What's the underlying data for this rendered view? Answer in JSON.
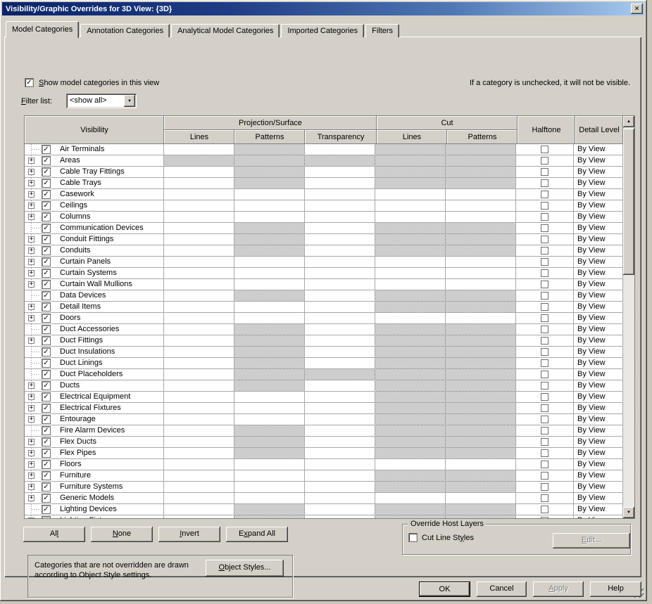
{
  "window": {
    "title": "Visibility/Graphic Overrides for 3D View: {3D}"
  },
  "glyphs": {
    "close": "✕",
    "check": "✓",
    "plus": "+",
    "up_arrow": "▲",
    "down_arrow": "▼",
    "combo_arrow": "▼"
  },
  "tabs": [
    {
      "label": "Model Categories",
      "active": true
    },
    {
      "label": "Annotation Categories",
      "active": false
    },
    {
      "label": "Analytical Model Categories",
      "active": false
    },
    {
      "label": "Imported Categories",
      "active": false
    },
    {
      "label": "Filters",
      "active": false
    }
  ],
  "top": {
    "show_categories": {
      "label": "Show model categories in this view",
      "u": 0,
      "checked": true
    },
    "note": "If a category is unchecked, it will not be visible.",
    "filter": {
      "label": "Filter list:",
      "u": 0,
      "value": "<show all>"
    }
  },
  "table": {
    "headers": {
      "visibility": "Visibility",
      "projection_group": "Projection/Surface",
      "cut_group": "Cut",
      "proj_lines": "Lines",
      "proj_patterns": "Patterns",
      "transparency": "Transparency",
      "cut_lines": "Lines",
      "cut_patterns": "Patterns",
      "halftone": "Halftone",
      "detail": "Detail Level"
    },
    "rows": [
      {
        "name": "Air Terminals",
        "expandable": false,
        "checked": true,
        "dim": "01011",
        "halftone": false,
        "detail_level": "By View"
      },
      {
        "name": "Areas",
        "expandable": true,
        "checked": true,
        "dim": "11111",
        "halftone": false,
        "detail_level": "By View"
      },
      {
        "name": "Cable Tray Fittings",
        "expandable": true,
        "checked": true,
        "dim": "01011",
        "halftone": false,
        "detail_level": "By View"
      },
      {
        "name": "Cable Trays",
        "expandable": true,
        "checked": true,
        "dim": "01011",
        "halftone": false,
        "detail_level": "By View"
      },
      {
        "name": "Casework",
        "expandable": true,
        "checked": true,
        "dim": "00000",
        "halftone": false,
        "detail_level": "By View"
      },
      {
        "name": "Ceilings",
        "expandable": true,
        "checked": true,
        "dim": "00000",
        "halftone": false,
        "detail_level": "By View"
      },
      {
        "name": "Columns",
        "expandable": true,
        "checked": true,
        "dim": "00000",
        "halftone": false,
        "detail_level": "By View"
      },
      {
        "name": "Communication Devices",
        "expandable": false,
        "checked": true,
        "dim": "01011",
        "halftone": false,
        "detail_level": "By View"
      },
      {
        "name": "Conduit Fittings",
        "expandable": true,
        "checked": true,
        "dim": "01011",
        "halftone": false,
        "detail_level": "By View"
      },
      {
        "name": "Conduits",
        "expandable": true,
        "checked": true,
        "dim": "01011",
        "halftone": false,
        "detail_level": "By View"
      },
      {
        "name": "Curtain Panels",
        "expandable": true,
        "checked": true,
        "dim": "00000",
        "halftone": false,
        "detail_level": "By View"
      },
      {
        "name": "Curtain Systems",
        "expandable": true,
        "checked": true,
        "dim": "00000",
        "halftone": false,
        "detail_level": "By View"
      },
      {
        "name": "Curtain Wall Mullions",
        "expandable": true,
        "checked": true,
        "dim": "00000",
        "halftone": false,
        "detail_level": "By View"
      },
      {
        "name": "Data Devices",
        "expandable": false,
        "checked": true,
        "dim": "01011",
        "halftone": false,
        "detail_level": "By View"
      },
      {
        "name": "Detail Items",
        "expandable": true,
        "checked": true,
        "dim": "00011",
        "halftone": false,
        "detail_level": "By View"
      },
      {
        "name": "Doors",
        "expandable": true,
        "checked": true,
        "dim": "00000",
        "halftone": false,
        "detail_level": "By View"
      },
      {
        "name": "Duct Accessories",
        "expandable": false,
        "checked": true,
        "dim": "01011",
        "halftone": false,
        "detail_level": "By View"
      },
      {
        "name": "Duct Fittings",
        "expandable": true,
        "checked": true,
        "dim": "01011",
        "halftone": false,
        "detail_level": "By View"
      },
      {
        "name": "Duct Insulations",
        "expandable": false,
        "checked": true,
        "dim": "01011",
        "halftone": false,
        "detail_level": "By View"
      },
      {
        "name": "Duct Linings",
        "expandable": false,
        "checked": true,
        "dim": "01011",
        "halftone": false,
        "detail_level": "By View"
      },
      {
        "name": "Duct Placeholders",
        "expandable": false,
        "checked": true,
        "dim": "01111",
        "halftone": false,
        "detail_level": "By View"
      },
      {
        "name": "Ducts",
        "expandable": true,
        "checked": true,
        "dim": "01011",
        "halftone": false,
        "detail_level": "By View"
      },
      {
        "name": "Electrical Equipment",
        "expandable": true,
        "checked": true,
        "dim": "00011",
        "halftone": false,
        "detail_level": "By View"
      },
      {
        "name": "Electrical Fixtures",
        "expandable": true,
        "checked": true,
        "dim": "00011",
        "halftone": false,
        "detail_level": "By View"
      },
      {
        "name": "Entourage",
        "expandable": true,
        "checked": true,
        "dim": "00011",
        "halftone": false,
        "detail_level": "By View"
      },
      {
        "name": "Fire Alarm Devices",
        "expandable": false,
        "checked": true,
        "dim": "01011",
        "halftone": false,
        "detail_level": "By View"
      },
      {
        "name": "Flex Ducts",
        "expandable": true,
        "checked": true,
        "dim": "01011",
        "halftone": false,
        "detail_level": "By View"
      },
      {
        "name": "Flex Pipes",
        "expandable": true,
        "checked": true,
        "dim": "01011",
        "halftone": false,
        "detail_level": "By View"
      },
      {
        "name": "Floors",
        "expandable": true,
        "checked": true,
        "dim": "00000",
        "halftone": false,
        "detail_level": "By View"
      },
      {
        "name": "Furniture",
        "expandable": true,
        "checked": true,
        "dim": "00011",
        "halftone": false,
        "detail_level": "By View"
      },
      {
        "name": "Furniture Systems",
        "expandable": true,
        "checked": true,
        "dim": "00011",
        "halftone": false,
        "detail_level": "By View"
      },
      {
        "name": "Generic Models",
        "expandable": true,
        "checked": true,
        "dim": "00000",
        "halftone": false,
        "detail_level": "By View"
      },
      {
        "name": "Lighting Devices",
        "expandable": false,
        "checked": true,
        "dim": "01011",
        "halftone": false,
        "detail_level": "By View"
      },
      {
        "name": "Lighting Fixtures",
        "expandable": true,
        "checked": true,
        "dim": "01011",
        "halftone": false,
        "detail_level": "By View"
      }
    ]
  },
  "list_buttons": [
    {
      "label": "All",
      "u": 2
    },
    {
      "label": "None",
      "u": 0
    },
    {
      "label": "Invert",
      "u": 0
    },
    {
      "label": "Expand All",
      "u": 1
    }
  ],
  "override_host_layers": {
    "title": "Override Host Layers",
    "checkbox": {
      "label": "Cut Line Styles",
      "u": 11,
      "checked": false
    },
    "edit_button": {
      "label": "Edit...",
      "u": 0,
      "disabled": true
    }
  },
  "note_box": {
    "line1": "Categories that are not overridden are drawn",
    "line2": "according to Object Style settings.",
    "button": {
      "label": "Object Styles...",
      "u": 0
    }
  },
  "dialog_buttons": [
    {
      "label": "OK",
      "u": -1,
      "default": true,
      "disabled": false
    },
    {
      "label": "Cancel",
      "u": -1,
      "default": false,
      "disabled": false
    },
    {
      "label": "Apply",
      "u": 0,
      "default": false,
      "disabled": true
    },
    {
      "label": "Help",
      "u": -1,
      "default": false,
      "disabled": false
    }
  ],
  "colors": {
    "face": "#d4d0c8",
    "title_gradient_start": "#0a246a",
    "title_gradient_end": "#a6caf0",
    "disabled_cell_dither": "#9c9c9c",
    "grid_line": "#a8a8a8"
  }
}
